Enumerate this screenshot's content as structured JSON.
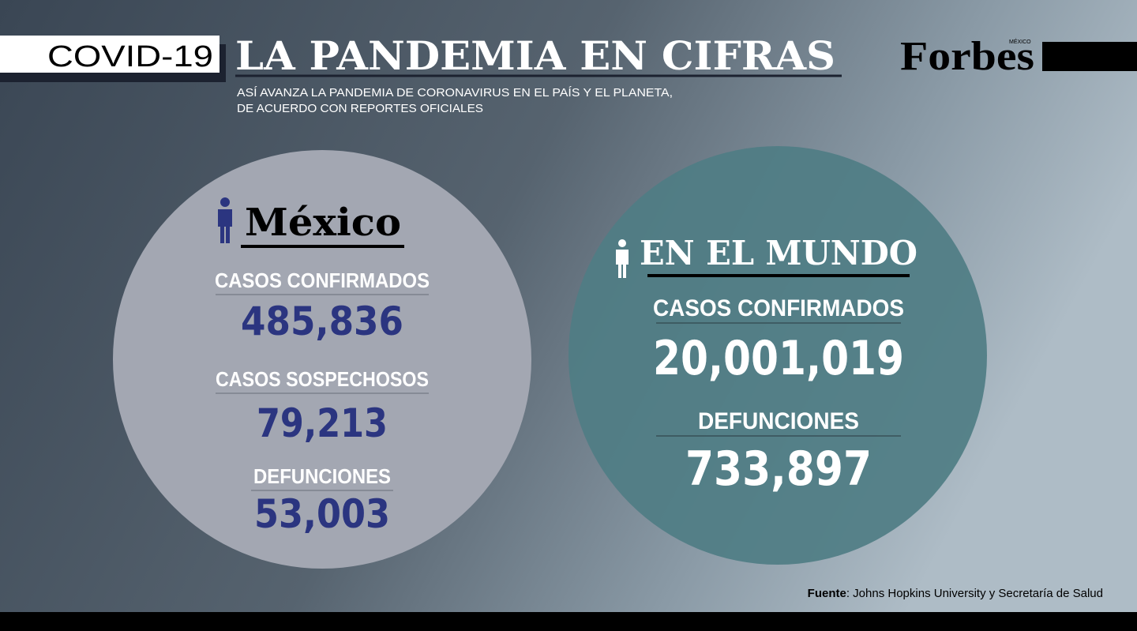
{
  "header": {
    "tag": "COVID-19",
    "title": "LA PANDEMIA EN CIFRAS",
    "subtitle": [
      "ASÍ AVANZA LA PANDEMIA DE CORONAVIRUS EN EL PAÍS Y EL PLANETA,",
      "DE ACUERDO CON REPORTES OFICIALES"
    ],
    "brand": "Forbes",
    "brand_edition": "MÉXICO"
  },
  "mexico": {
    "title": "México",
    "stats": [
      {
        "label": "CASOS CONFIRMADOS",
        "value": "485,836"
      },
      {
        "label": "CASOS SOSPECHOSOS",
        "value": "79,213"
      },
      {
        "label": "DEFUNCIONES",
        "value": "53,003"
      }
    ]
  },
  "world": {
    "title": "EN EL MUNDO",
    "stats": [
      {
        "label": "CASOS CONFIRMADOS",
        "value": "20,001,019"
      },
      {
        "label": "DEFUNCIONES",
        "value": "733,897"
      }
    ]
  },
  "source": {
    "label": "Fuente",
    "text": ": Johns Hopkins University y Secretaría de Salud"
  }
}
